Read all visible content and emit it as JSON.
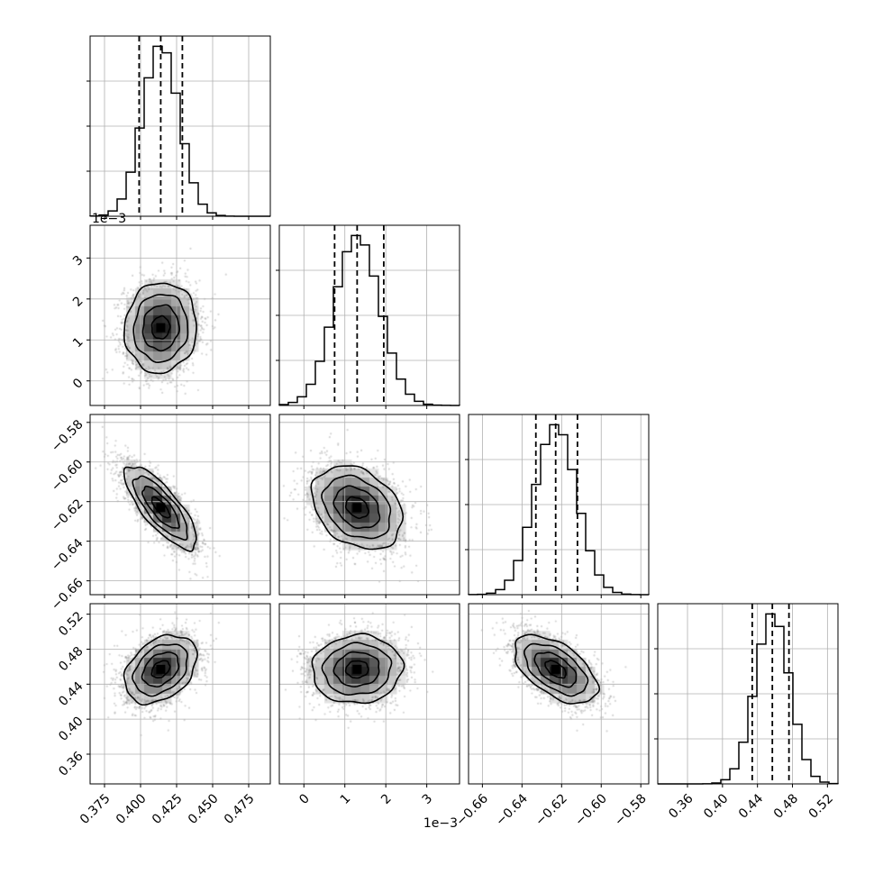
{
  "chart_data": {
    "type": "corner",
    "dimensions": 4,
    "histogram_color": "#000000",
    "point_color": "#9e9e9e",
    "contour_color": "#000000",
    "grid": true,
    "params": [
      {
        "range": [
          0.365,
          0.49
        ],
        "ticks": [
          "0.375",
          "0.400",
          "0.425",
          "0.450",
          "0.475"
        ],
        "tick_values": [
          0.375,
          0.4,
          0.425,
          0.45,
          0.475
        ],
        "mean": 0.414,
        "sd": 0.0125,
        "quantiles": [
          0.399,
          0.414,
          0.429
        ],
        "offset_label": ""
      },
      {
        "range": [
          -0.0006,
          0.0038
        ],
        "ticks": [
          "0",
          "1",
          "2",
          "3"
        ],
        "tick_values": [
          0,
          0.001,
          0.002,
          0.003
        ],
        "mean": 0.0013,
        "sd": 0.00055,
        "quantiles": [
          0.00075,
          0.0013,
          0.00195
        ],
        "offset_label": "1e−3"
      },
      {
        "range": [
          -0.667,
          -0.576
        ],
        "ticks": [
          "−0.66",
          "−0.64",
          "−0.62",
          "−0.60",
          "−0.58"
        ],
        "tick_values": [
          -0.66,
          -0.64,
          -0.62,
          -0.6,
          -0.58
        ],
        "mean": -0.623,
        "sd": 0.0105,
        "quantiles": [
          -0.633,
          -0.623,
          -0.612
        ],
        "offset_label": ""
      },
      {
        "range": [
          0.326,
          0.532
        ],
        "ticks": [
          "0.36",
          "0.40",
          "0.44",
          "0.48",
          "0.52"
        ],
        "tick_values": [
          0.36,
          0.4,
          0.44,
          0.48,
          0.52
        ],
        "mean": 0.457,
        "sd": 0.0195,
        "quantiles": [
          0.434,
          0.457,
          0.476
        ],
        "offset_label": ""
      }
    ],
    "correlations": [
      [
        1.0,
        0.05,
        -0.78,
        0.35
      ],
      [
        0.05,
        1.0,
        -0.3,
        0.05
      ],
      [
        -0.78,
        -0.3,
        1.0,
        -0.55
      ],
      [
        0.35,
        0.05,
        -0.55,
        1.0
      ]
    ],
    "contour_levels_sigma": [
      0.5,
      1.0,
      1.5,
      2.0
    ]
  }
}
